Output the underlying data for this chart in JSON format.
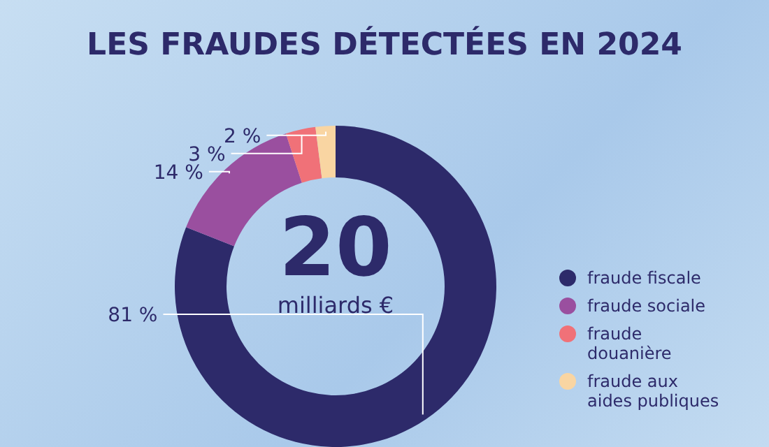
{
  "chart_data": {
    "type": "donut",
    "title": "LES FRAUDES DÉTECTÉES EN 2024",
    "categories": [
      "fraude fiscale",
      "fraude sociale",
      "fraude douanière",
      "fraude aux aides publiques"
    ],
    "values": [
      81,
      14,
      3,
      2
    ],
    "colors": [
      "#2d2a6a",
      "#9a4f9f",
      "#f07178",
      "#f9d5a2"
    ],
    "value_labels": [
      "81 %",
      "14 %",
      "3 %",
      "2 %"
    ],
    "annotations": [
      "20",
      "milliards €"
    ],
    "legend": "bottom right"
  }
}
